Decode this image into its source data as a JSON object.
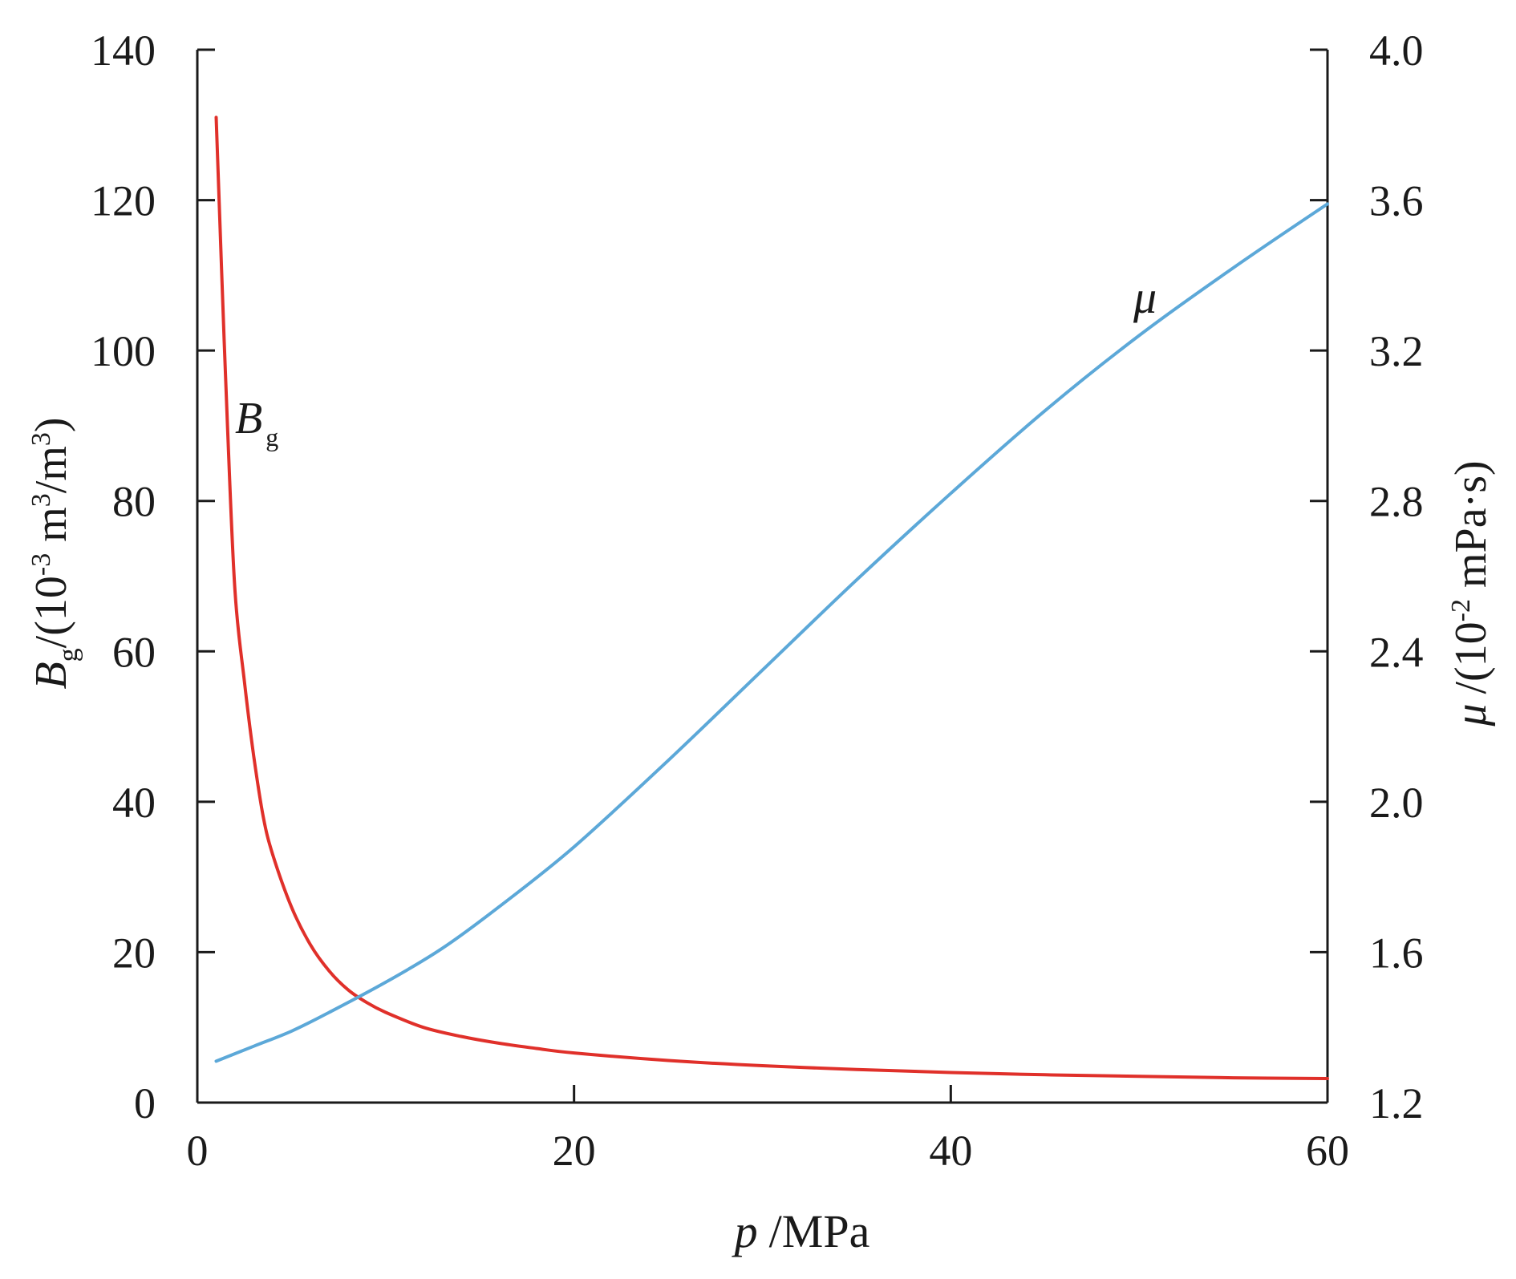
{
  "chart_data": {
    "type": "line",
    "xlabel": {
      "var": "p",
      "unit": "/MPa"
    },
    "ylabel_left": {
      "var": "B",
      "sub": "g",
      "pre": "/(10",
      "exp1": "-3",
      "mid": " m",
      "exp2": "3",
      "mid2": "/m",
      "exp3": "3",
      "post": ")"
    },
    "ylabel_right": {
      "var": "μ",
      "pre": "/(10",
      "exp": "-2",
      "post": " mPa·s)"
    },
    "xlim": [
      0,
      60
    ],
    "ylim_left": [
      0,
      140
    ],
    "ylim_right": [
      1.2,
      4.0
    ],
    "x_ticks": [
      "0",
      "20",
      "40",
      "60"
    ],
    "y_left_ticks": [
      "0",
      "20",
      "40",
      "60",
      "80",
      "100",
      "120",
      "140"
    ],
    "y_right_ticks": [
      "1.2",
      "1.6",
      "2.0",
      "2.4",
      "2.8",
      "3.2",
      "3.6",
      "4.0"
    ],
    "series": [
      {
        "name": "Bg",
        "label": {
          "var": "B",
          "sub": "g"
        },
        "axis": "left",
        "color": "#e0302a",
        "x": [
          1.0,
          1.3,
          1.6,
          2.0,
          2.5,
          3.0,
          3.5,
          4.0,
          5.0,
          6.0,
          7.0,
          8.0,
          9.0,
          10.0,
          12.0,
          14.0,
          16.0,
          18.0,
          20.0,
          25.0,
          30.0,
          35.0,
          40.0,
          45.0,
          50.0,
          55.0,
          60.0
        ],
        "values": [
          131,
          110,
          90,
          68,
          56,
          46,
          38,
          33,
          26,
          21,
          17.5,
          15,
          13.3,
          12,
          10,
          8.8,
          7.9,
          7.2,
          6.6,
          5.6,
          4.9,
          4.4,
          4.0,
          3.7,
          3.5,
          3.3,
          3.2
        ]
      },
      {
        "name": "μ",
        "label": {
          "var": "μ"
        },
        "axis": "right",
        "color": "#5ca8d8",
        "x": [
          1,
          3,
          5,
          7,
          10,
          13,
          16,
          20,
          25,
          30,
          35,
          40,
          45,
          50,
          55,
          60
        ],
        "values": [
          1.31,
          1.35,
          1.39,
          1.44,
          1.52,
          1.61,
          1.72,
          1.88,
          2.11,
          2.35,
          2.59,
          2.82,
          3.04,
          3.24,
          3.42,
          3.59
        ]
      }
    ]
  }
}
